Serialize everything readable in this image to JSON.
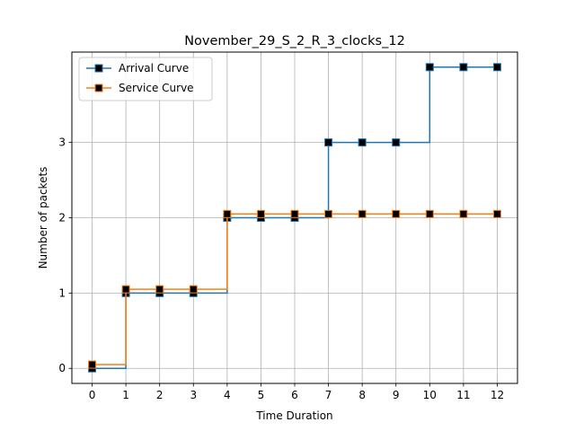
{
  "chart_data": {
    "type": "line",
    "step": "post",
    "title": "November_29_S_2_R_3_clocks_12",
    "xlabel": "Time Duration",
    "ylabel": "Number of packets",
    "xlim": [
      -0.6,
      12.6
    ],
    "ylim": [
      -0.2,
      4.2
    ],
    "xticks": [
      0,
      1,
      2,
      3,
      4,
      5,
      6,
      7,
      8,
      9,
      10,
      11,
      12
    ],
    "yticks": [
      0,
      1,
      2,
      3
    ],
    "grid": true,
    "legend_position": "top-left",
    "series": [
      {
        "name": "Arrival Curve",
        "color": "#1f77b4",
        "marker": "square",
        "x": [
          0,
          1,
          2,
          3,
          4,
          5,
          6,
          7,
          8,
          9,
          10,
          11,
          12
        ],
        "y": [
          0,
          1,
          1,
          1,
          2,
          2,
          2,
          3,
          3,
          3,
          4,
          4,
          4
        ]
      },
      {
        "name": "Service Curve",
        "color": "#ff7f0e",
        "marker": "square",
        "x": [
          0,
          1,
          2,
          3,
          4,
          5,
          6,
          7,
          8,
          9,
          10,
          11,
          12
        ],
        "y": [
          0.05,
          1.05,
          1.05,
          1.05,
          2.05,
          2.05,
          2.05,
          2.05,
          2.05,
          2.05,
          2.05,
          2.05,
          2.05
        ]
      }
    ]
  }
}
